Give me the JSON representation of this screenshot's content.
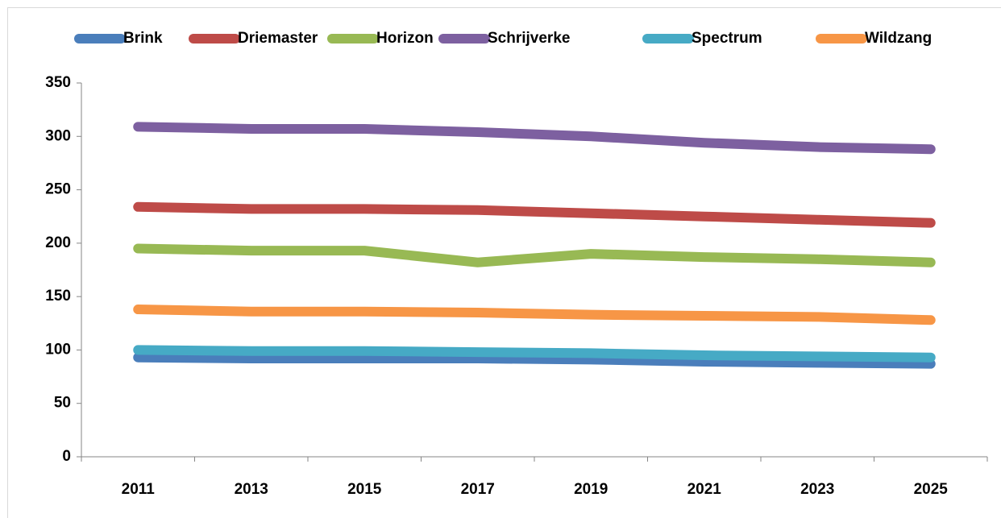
{
  "chart_data": {
    "type": "line",
    "categories": [
      "2011",
      "2013",
      "2015",
      "2017",
      "2019",
      "2021",
      "2023",
      "2025"
    ],
    "series": [
      {
        "name": "Brink",
        "color": "#4a7ebb",
        "values": [
          93,
          92,
          92,
          92,
          91,
          89,
          88,
          87
        ]
      },
      {
        "name": "Driemaster",
        "color": "#be4b48",
        "values": [
          234,
          232,
          232,
          231,
          228,
          225,
          222,
          219
        ]
      },
      {
        "name": "Horizon",
        "color": "#98b954",
        "values": [
          195,
          193,
          193,
          182,
          190,
          187,
          185,
          182
        ]
      },
      {
        "name": "Schrijverke",
        "color": "#7d60a0",
        "values": [
          309,
          307,
          307,
          304,
          300,
          294,
          290,
          288
        ]
      },
      {
        "name": "Spectrum",
        "color": "#46aac5",
        "values": [
          100,
          99,
          99,
          98,
          97,
          95,
          94,
          93
        ]
      },
      {
        "name": "Wildzang",
        "color": "#f79646",
        "values": [
          138,
          136,
          136,
          135,
          133,
          132,
          131,
          128
        ]
      }
    ],
    "ylim": [
      0,
      350
    ],
    "yticks": [
      0,
      50,
      100,
      150,
      200,
      250,
      300,
      350
    ],
    "legend": "top",
    "grid": false
  }
}
